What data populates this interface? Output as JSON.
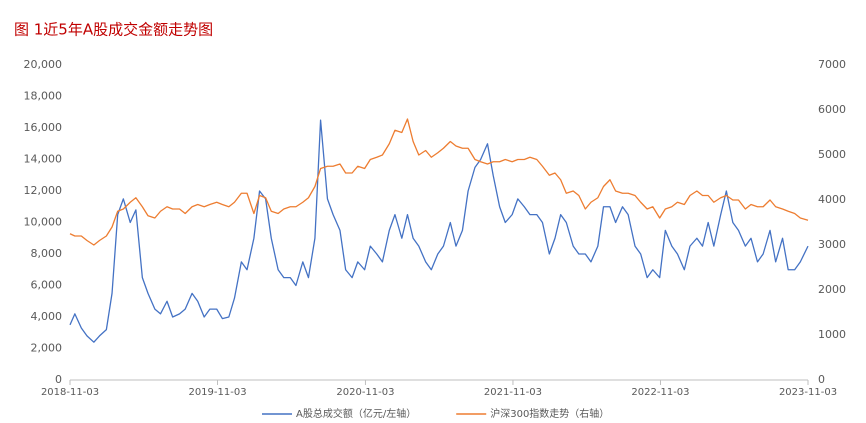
{
  "chart_data": {
    "type": "line",
    "title": "图 1近5年A股成交金额走势图",
    "x": [
      "2018-11-03",
      "2018-11-15",
      "2018-12-01",
      "2018-12-15",
      "2019-01-01",
      "2019-01-15",
      "2019-02-01",
      "2019-02-15",
      "2019-03-01",
      "2019-03-15",
      "2019-04-01",
      "2019-04-15",
      "2019-05-01",
      "2019-05-15",
      "2019-06-01",
      "2019-06-15",
      "2019-07-01",
      "2019-07-15",
      "2019-08-01",
      "2019-08-15",
      "2019-09-01",
      "2019-09-15",
      "2019-10-01",
      "2019-10-15",
      "2019-11-01",
      "2019-11-15",
      "2019-12-01",
      "2019-12-15",
      "2020-01-01",
      "2020-01-15",
      "2020-02-01",
      "2020-02-15",
      "2020-03-01",
      "2020-03-15",
      "2020-04-01",
      "2020-04-15",
      "2020-05-01",
      "2020-05-15",
      "2020-06-01",
      "2020-06-15",
      "2020-07-01",
      "2020-07-15",
      "2020-08-01",
      "2020-08-15",
      "2020-09-01",
      "2020-09-15",
      "2020-10-01",
      "2020-10-15",
      "2020-11-01",
      "2020-11-15",
      "2020-12-01",
      "2020-12-15",
      "2021-01-01",
      "2021-01-15",
      "2021-02-01",
      "2021-02-15",
      "2021-03-01",
      "2021-03-15",
      "2021-04-01",
      "2021-04-15",
      "2021-05-01",
      "2021-05-15",
      "2021-06-01",
      "2021-06-15",
      "2021-07-01",
      "2021-07-15",
      "2021-08-01",
      "2021-08-15",
      "2021-09-01",
      "2021-09-15",
      "2021-10-01",
      "2021-10-15",
      "2021-11-01",
      "2021-11-15",
      "2021-12-01",
      "2021-12-15",
      "2022-01-01",
      "2022-01-15",
      "2022-02-01",
      "2022-02-15",
      "2022-03-01",
      "2022-03-15",
      "2022-04-01",
      "2022-04-15",
      "2022-05-01",
      "2022-05-15",
      "2022-06-01",
      "2022-06-15",
      "2022-07-01",
      "2022-07-15",
      "2022-08-01",
      "2022-08-15",
      "2022-09-01",
      "2022-09-15",
      "2022-10-01",
      "2022-10-15",
      "2022-11-01",
      "2022-11-15",
      "2022-12-01",
      "2022-12-15",
      "2023-01-01",
      "2023-01-15",
      "2023-02-01",
      "2023-02-15",
      "2023-03-01",
      "2023-03-15",
      "2023-04-01",
      "2023-04-15",
      "2023-05-01",
      "2023-05-15",
      "2023-06-01",
      "2023-06-15",
      "2023-07-01",
      "2023-07-15",
      "2023-08-01",
      "2023-08-15",
      "2023-09-01",
      "2023-09-15",
      "2023-10-01",
      "2023-10-15",
      "2023-11-03"
    ],
    "series": [
      {
        "name": "A股总成交额（亿元/左轴）",
        "color": "#4472c4",
        "values": [
          3500,
          4200,
          3300,
          2800,
          2400,
          2800,
          3200,
          5500,
          10500,
          11500,
          10000,
          10800,
          6500,
          5500,
          4500,
          4200,
          5000,
          4000,
          4200,
          4500,
          5500,
          5000,
          4000,
          4500,
          4500,
          3900,
          4000,
          5200,
          7500,
          7000,
          9000,
          12000,
          11500,
          9000,
          7000,
          6500,
          6500,
          6000,
          7500,
          6500,
          9000,
          16500,
          11500,
          10500,
          9500,
          7000,
          6500,
          7500,
          7000,
          8500,
          8000,
          7500,
          9500,
          10500,
          9000,
          10500,
          9000,
          8500,
          7500,
          7000,
          8000,
          8500,
          10000,
          8500,
          9500,
          12000,
          13500,
          14000,
          15000,
          13000,
          11000,
          10000,
          10500,
          11500,
          11000,
          10500,
          10500,
          10000,
          8000,
          9000,
          10500,
          10000,
          8500,
          8000,
          8000,
          7500,
          8500,
          11000,
          11000,
          10000,
          11000,
          10500,
          8500,
          8000,
          6500,
          7000,
          6500,
          9500,
          8500,
          8000,
          7000,
          8500,
          9000,
          8500,
          10000,
          8500,
          10500,
          12000,
          10000,
          9500,
          8500,
          9000,
          7500,
          8000,
          9500,
          7500,
          9000,
          7000,
          7000,
          7500,
          8500
        ]
      },
      {
        "name": "沪深300指数走势（右轴）",
        "color": "#ed7d31",
        "axis": "y2",
        "values": [
          3250,
          3200,
          3200,
          3100,
          3000,
          3100,
          3200,
          3400,
          3750,
          3800,
          3950,
          4050,
          3850,
          3650,
          3600,
          3750,
          3850,
          3800,
          3800,
          3700,
          3850,
          3900,
          3850,
          3900,
          3950,
          3900,
          3850,
          3950,
          4150,
          4150,
          3700,
          4100,
          4050,
          3750,
          3700,
          3800,
          3850,
          3850,
          3950,
          4050,
          4300,
          4700,
          4750,
          4750,
          4800,
          4600,
          4600,
          4750,
          4700,
          4900,
          4950,
          5000,
          5250,
          5550,
          5500,
          5800,
          5300,
          5000,
          5100,
          4950,
          5050,
          5150,
          5300,
          5200,
          5150,
          5150,
          4900,
          4850,
          4800,
          4850,
          4850,
          4900,
          4850,
          4900,
          4900,
          4950,
          4900,
          4750,
          4550,
          4600,
          4450,
          4150,
          4200,
          4100,
          3800,
          3950,
          4050,
          4300,
          4450,
          4200,
          4150,
          4150,
          4100,
          3950,
          3800,
          3850,
          3600,
          3800,
          3850,
          3950,
          3900,
          4100,
          4200,
          4100,
          4100,
          3950,
          4050,
          4100,
          4000,
          4000,
          3800,
          3900,
          3850,
          3850,
          4000,
          3850,
          3800,
          3750,
          3700,
          3600,
          3550
        ]
      }
    ],
    "xlim": [
      "2018-11-03",
      "2023-11-03"
    ],
    "xticks": [
      "2018-11-03",
      "2019-11-03",
      "2020-11-03",
      "2021-11-03",
      "2022-11-03",
      "2023-11-03"
    ],
    "ylim": [
      0,
      20000
    ],
    "yticks": [
      0,
      {
        "value": 2000,
        "label": "2,000"
      },
      {
        "value": 4000,
        "label": "4,000"
      },
      {
        "value": 6000,
        "label": "6,000"
      },
      {
        "value": 8000,
        "label": "8,000"
      },
      {
        "value": 10000,
        "label": "10,000"
      },
      {
        "value": 12000,
        "label": "12,000"
      },
      {
        "value": 14000,
        "label": "14,000"
      },
      {
        "value": 16000,
        "label": "16,000"
      },
      {
        "value": 18000,
        "label": "18,000"
      },
      {
        "value": 20000,
        "label": "20,000"
      }
    ],
    "y2lim": [
      0,
      7000
    ],
    "y2ticks": [
      0,
      1000,
      2000,
      3000,
      4000,
      5000,
      6000,
      7000
    ],
    "grid": false,
    "legend": "bottom"
  }
}
